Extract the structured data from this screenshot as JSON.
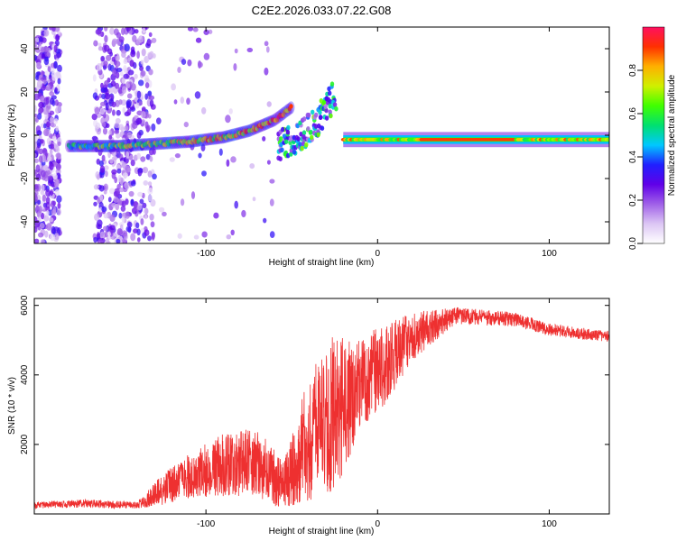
{
  "title": "C2E2.2026.033.07.22.G08",
  "chart_data": [
    {
      "type": "heatmap",
      "name": "spectrogram",
      "xlabel": "Height of straight line (km)",
      "ylabel": "Frequency (Hz)",
      "xlim": [
        -200,
        135
      ],
      "ylim": [
        -50,
        50
      ],
      "xticks": [
        -100,
        0,
        100
      ],
      "yticks": [
        -40,
        -20,
        0,
        20,
        40
      ],
      "colorbar": {
        "label": "Normalized spectral amplitude",
        "range": [
          0,
          1
        ],
        "ticks": [
          0.0,
          0.2,
          0.4,
          0.6,
          0.8
        ],
        "colors": [
          "#ffffff",
          "#dcc6f4",
          "#a060e8",
          "#6000e8",
          "#2020ff",
          "#00c8ff",
          "#00e070",
          "#40ff00",
          "#d0f000",
          "#ffb000",
          "#ff3000",
          "#ff1060"
        ]
      },
      "ridge": [
        {
          "x": -180,
          "y": -5
        },
        {
          "x": -150,
          "y": -5
        },
        {
          "x": -130,
          "y": -4
        },
        {
          "x": -110,
          "y": -3
        },
        {
          "x": -90,
          "y": -1
        },
        {
          "x": -75,
          "y": 2
        },
        {
          "x": -60,
          "y": 7
        },
        {
          "x": -50,
          "y": 13
        }
      ],
      "branch": [
        {
          "x": -58,
          "y": -5
        },
        {
          "x": -45,
          "y": 0
        },
        {
          "x": -35,
          "y": 8
        },
        {
          "x": -25,
          "y": 20
        }
      ],
      "steady_band": {
        "x_start": -20,
        "x_end": 135,
        "y": -2
      }
    },
    {
      "type": "line",
      "name": "snr",
      "xlabel": "Height of straight line (km)",
      "ylabel": "SNR (10 * v/v)",
      "xlim": [
        -200,
        135
      ],
      "ylim": [
        0,
        6200
      ],
      "xticks": [
        -100,
        0,
        100
      ],
      "yticks": [
        2000,
        4000,
        6000
      ],
      "color": "#ee3030",
      "envelope": [
        {
          "x": -200,
          "mean": 250,
          "spread": 90
        },
        {
          "x": -170,
          "mean": 300,
          "spread": 120
        },
        {
          "x": -140,
          "mean": 250,
          "spread": 100
        },
        {
          "x": -125,
          "mean": 700,
          "spread": 450
        },
        {
          "x": -110,
          "mean": 1100,
          "spread": 650
        },
        {
          "x": -90,
          "mean": 1400,
          "spread": 900
        },
        {
          "x": -70,
          "mean": 1500,
          "spread": 1000
        },
        {
          "x": -55,
          "mean": 800,
          "spread": 700
        },
        {
          "x": -40,
          "mean": 2200,
          "spread": 1800
        },
        {
          "x": -25,
          "mean": 2800,
          "spread": 2400
        },
        {
          "x": -10,
          "mean": 3800,
          "spread": 1300
        },
        {
          "x": 5,
          "mean": 4300,
          "spread": 1200
        },
        {
          "x": 20,
          "mean": 5100,
          "spread": 700
        },
        {
          "x": 45,
          "mean": 5700,
          "spread": 250
        },
        {
          "x": 80,
          "mean": 5600,
          "spread": 200
        },
        {
          "x": 100,
          "mean": 5300,
          "spread": 180
        },
        {
          "x": 135,
          "mean": 5100,
          "spread": 160
        }
      ]
    }
  ]
}
